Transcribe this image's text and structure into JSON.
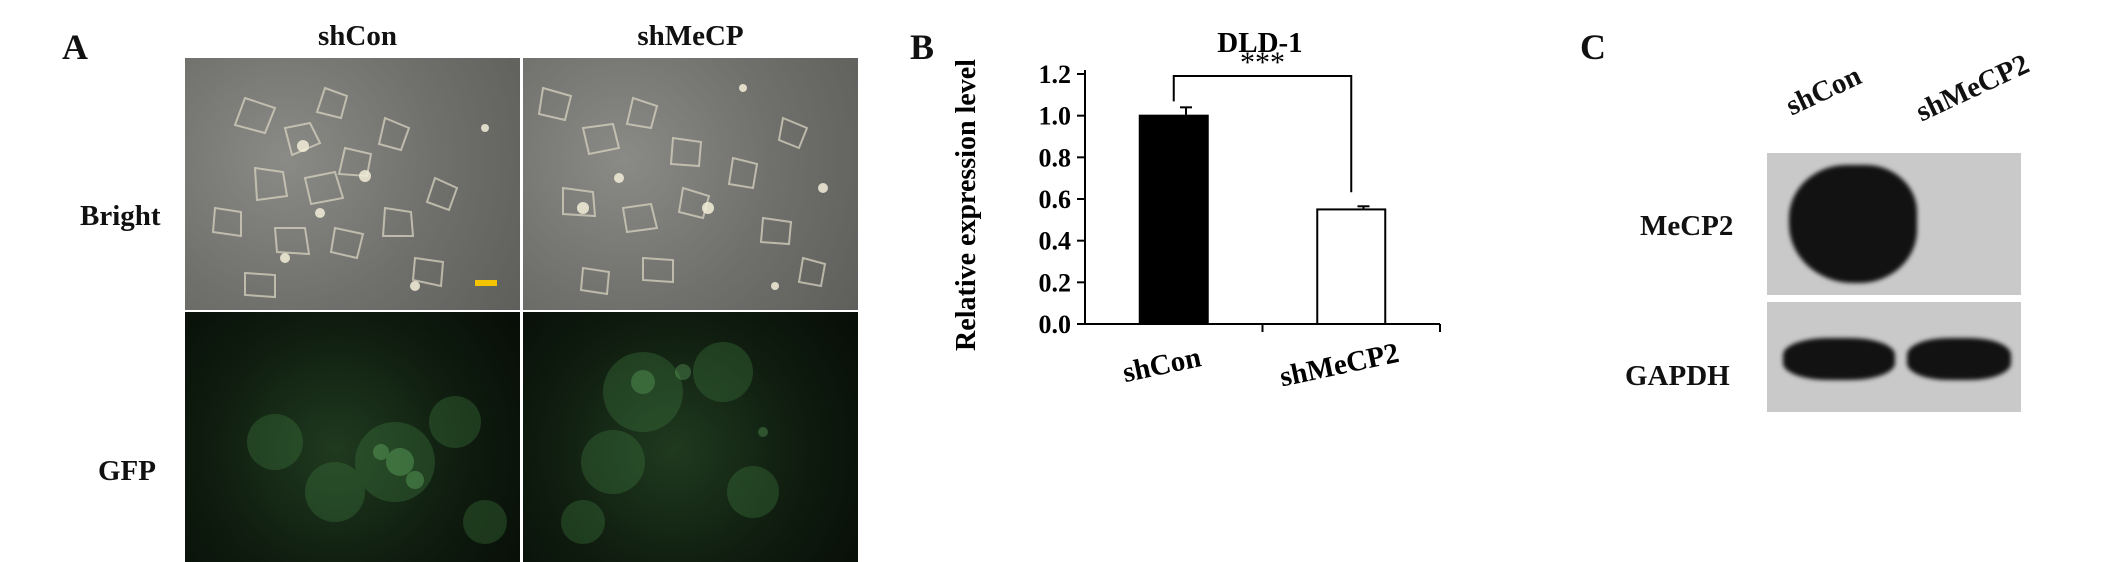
{
  "panels": {
    "a": {
      "label": "A",
      "columns": [
        "shCon",
        "shMeCP"
      ],
      "rows": [
        "Bright",
        "GFP"
      ]
    },
    "b": {
      "label": "B"
    },
    "c": {
      "label": "C",
      "lanes": [
        "shCon",
        "shMeCP2"
      ],
      "rows": [
        "MeCP2",
        "GAPDH"
      ]
    }
  },
  "chart_data": {
    "type": "bar",
    "title": "DLD-1",
    "xlabel": "",
    "ylabel": "Relative expression  level",
    "categories": [
      "shCon",
      "shMeCP2"
    ],
    "values": [
      1.0,
      0.55
    ],
    "errors": [
      0.04,
      0.015
    ],
    "bar_colors": [
      "#000000",
      "#ffffff"
    ],
    "ylim": [
      0,
      1.2
    ],
    "yticks": [
      0.0,
      0.2,
      0.4,
      0.6,
      0.8,
      1.0,
      1.2
    ],
    "tick_labels": [
      "0.0",
      "0.2",
      "0.4",
      "0.6",
      "0.8",
      "1.0",
      "1.2"
    ],
    "significance": "***",
    "grid": false,
    "legend": "none"
  }
}
